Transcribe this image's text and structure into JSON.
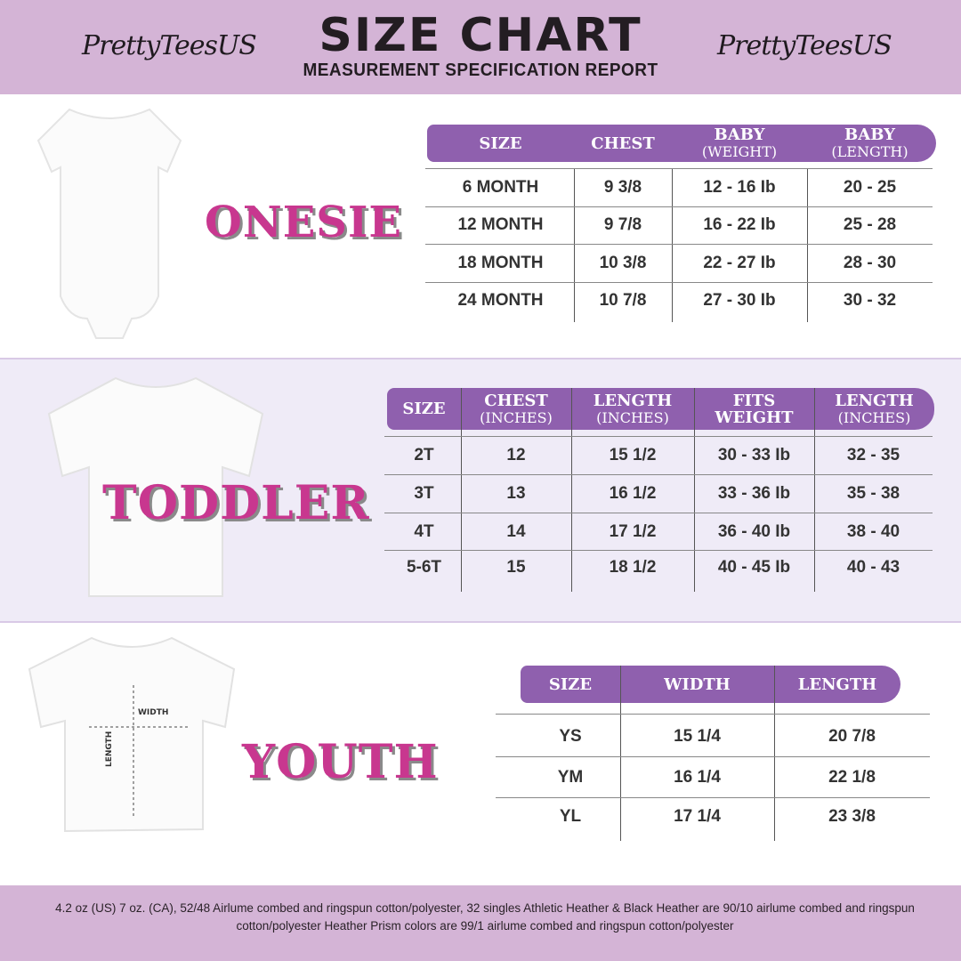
{
  "header": {
    "brand_left": "PrettyTeesUS",
    "brand_right": "PrettyTeesUS",
    "title": "SIZE CHART",
    "subtitle": "MEASUREMENT SPECIFICATION REPORT"
  },
  "onesie": {
    "label": "ONESIE",
    "headers": [
      {
        "main": "SIZE",
        "sub": ""
      },
      {
        "main": "CHEST",
        "sub": ""
      },
      {
        "main": "BABY",
        "sub": "(WEIGHT)"
      },
      {
        "main": "BABY",
        "sub": "(LENGTH)"
      }
    ],
    "rows": [
      [
        "6 MONTH",
        "9 3/8",
        "12 - 16 Ib",
        "20 - 25"
      ],
      [
        "12 MONTH",
        "9 7/8",
        "16 - 22 Ib",
        "25 - 28"
      ],
      [
        "18  MONTH",
        "10 3/8",
        "22 - 27 Ib",
        "28 - 30"
      ],
      [
        "24 MONTH",
        "10 7/8",
        "27 - 30 Ib",
        "30 - 32"
      ]
    ]
  },
  "toddler": {
    "label": "TODDLER",
    "headers": [
      {
        "main": "SIZE",
        "sub": ""
      },
      {
        "main": "CHEST",
        "sub": "(INCHES)"
      },
      {
        "main": "LENGTH",
        "sub": "(INCHES)"
      },
      {
        "main": "FITS",
        "sub": "WEIGHT"
      },
      {
        "main": "LENGTH",
        "sub": "(INCHES)"
      }
    ],
    "rows": [
      [
        "2T",
        "12",
        "15 1/2",
        "30 - 33  Ib",
        "32 - 35"
      ],
      [
        "3T",
        "13",
        "16 1/2",
        "33 - 36 Ib",
        "35 - 38"
      ],
      [
        "4T",
        "14",
        "17 1/2",
        "36 - 40 Ib",
        "38 - 40"
      ],
      [
        "5-6T",
        "15",
        "18 1/2",
        "40 - 45 Ib",
        "40 - 43"
      ]
    ]
  },
  "youth": {
    "label": "YOUTH",
    "diagram_width": "WIDTH",
    "diagram_length": "LENGTH",
    "headers": [
      {
        "main": "SIZE",
        "sub": ""
      },
      {
        "main": "WIDTH",
        "sub": ""
      },
      {
        "main": "LENGTH",
        "sub": ""
      }
    ],
    "rows": [
      [
        "YS",
        "15 1/4",
        "20 7/8"
      ],
      [
        "YM",
        "16 1/4",
        "22 1/8"
      ],
      [
        "YL",
        "17 1/4",
        "23 3/8"
      ]
    ]
  },
  "footer": {
    "text": "4.2 oz (US) 7 oz. (CA), 52/48 Airlume combed and ringspun cotton/polyester, 32 singles Athletic Heather & Black Heather are 90/10 airlume combed and ringspun cotton/polyester Heather Prism colors are 99/1 airlume combed and ringspun cotton/polyester"
  },
  "colors": {
    "header_bg": "#d4b4d6",
    "table_header": "#8f60ae",
    "label_pink": "#c8378f",
    "section_lavender": "#efebf7"
  }
}
